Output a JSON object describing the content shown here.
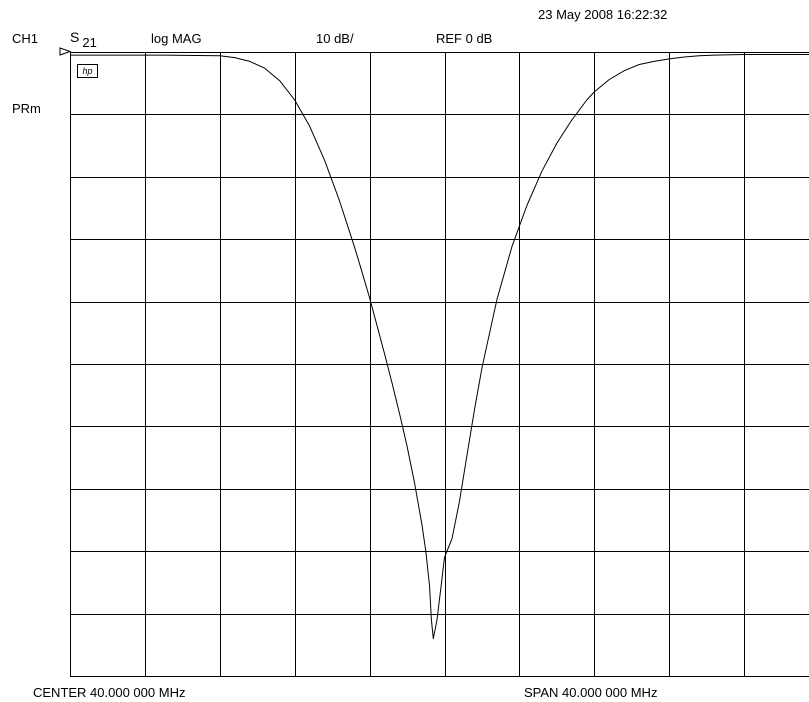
{
  "header": {
    "datetime": "23 May 2008  16:22:32",
    "channel": "CH1",
    "param_letter": "S",
    "param_sub": "21",
    "format": "log MAG",
    "scale": "10 dB/",
    "ref": "REF 0 dB",
    "power_label": "PRm",
    "hp_badge": "hp"
  },
  "footer": {
    "center": "CENTER  40.000 000 MHz",
    "span": "SPAN  40.000 000 MHz"
  },
  "colors": {
    "trace": "#000000",
    "grid": "#000000",
    "background": "#ffffff"
  },
  "chart_data": {
    "type": "line",
    "title": "",
    "xlabel": "",
    "ylabel": "",
    "x_unit": "MHz",
    "y_unit": "dB",
    "xlim": [
      20,
      60
    ],
    "ylim": [
      -100,
      0
    ],
    "x_divisions": 10,
    "y_divisions": 10,
    "grid": true,
    "reference_level_db": 0,
    "series": [
      {
        "name": "",
        "x": [
          20,
          25,
          28,
          28.8,
          29.6,
          30.4,
          31.2,
          32,
          32.8,
          33.6,
          34.4,
          35.2,
          35.6,
          36,
          36.4,
          36.8,
          37.2,
          37.6,
          38,
          38.4,
          38.8,
          39,
          39.2,
          39.3,
          39.4,
          39.6,
          39.8,
          40,
          40.4,
          40.8,
          41.2,
          41.6,
          42,
          42.8,
          43.6,
          44.4,
          45.2,
          46,
          46.8,
          47.6,
          48,
          48.8,
          49.6,
          50.4,
          51.2,
          52,
          52.8,
          53.6,
          54.4,
          56,
          58,
          60
        ],
        "values": [
          -0.5,
          -0.5,
          -0.6,
          -0.9,
          -1.5,
          -2.6,
          -4.6,
          -7.7,
          -11.9,
          -17.4,
          -23.9,
          -31.3,
          -35.3,
          -39.4,
          -43.9,
          -48.4,
          -53.1,
          -58.0,
          -63.2,
          -69.0,
          -75.8,
          -80.0,
          -85.5,
          -91.0,
          -94.0,
          -91.0,
          -86.0,
          -81.0,
          -78.0,
          -72.0,
          -64.6,
          -57.3,
          -50.6,
          -39.7,
          -31.2,
          -24.6,
          -19.1,
          -14.6,
          -10.9,
          -7.7,
          -6.4,
          -4.4,
          -3.0,
          -2.0,
          -1.5,
          -1.1,
          -0.8,
          -0.6,
          -0.5,
          -0.4,
          -0.4,
          -0.4
        ]
      }
    ]
  }
}
